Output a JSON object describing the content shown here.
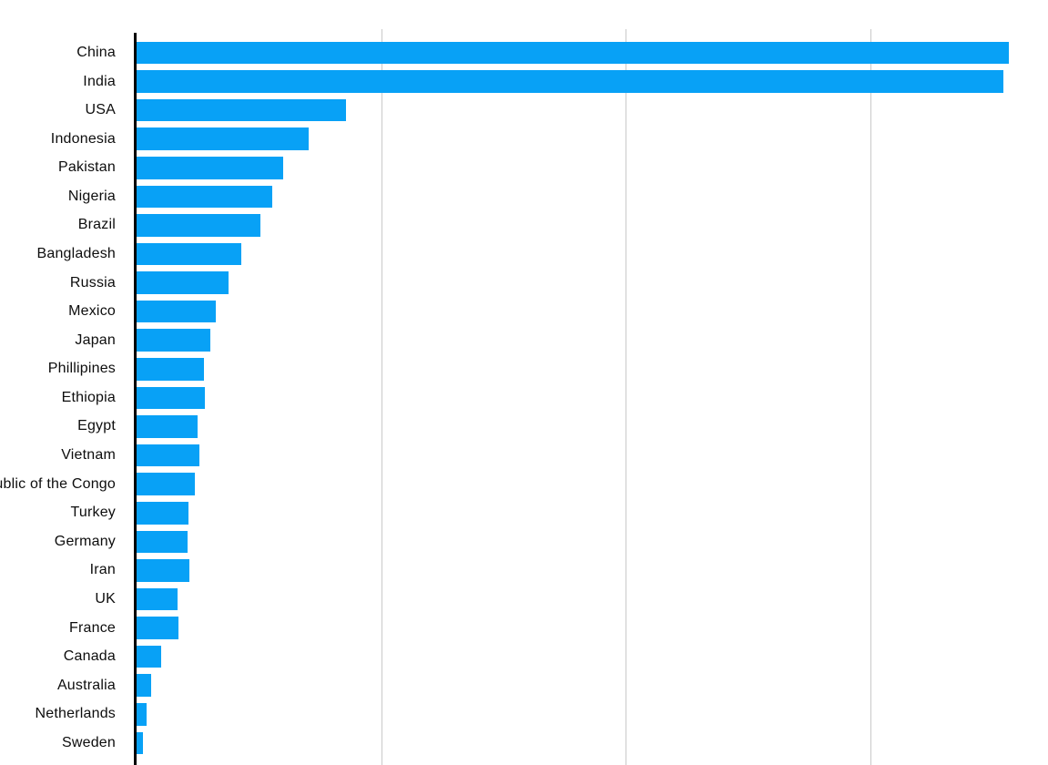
{
  "page": {
    "background_color": "#ffffff"
  },
  "chart_data": {
    "type": "bar",
    "orientation": "horizontal",
    "title": "",
    "xlabel": "",
    "ylabel": "",
    "legend": "none",
    "grid": "vertical gridlines only",
    "categories": [
      "China",
      "India",
      "USA",
      "Indonesia",
      "Pakistan",
      "Nigeria",
      "Brazil",
      "Bangladesh",
      "Russia",
      "Mexico",
      "Japan",
      "Phillipines",
      "Ethiopia",
      "Egypt",
      "Vietnam",
      "Democratic Republic of the Congo",
      "Turkey",
      "Germany",
      "Iran",
      "UK",
      "France",
      "Canada",
      "Australia",
      "Netherlands",
      "Sweden"
    ],
    "values": [
      1426,
      1417,
      342,
      281,
      240,
      221,
      202,
      171,
      150,
      130,
      121,
      110,
      111,
      100,
      102,
      95,
      85,
      84,
      87,
      67,
      68,
      40,
      24,
      17,
      10
    ],
    "value_unit": "millions (estimated from bar lengths; numeric axis tick labels are cropped out of the visible frame)",
    "xlim": [
      0,
      1490
    ],
    "gridline_values": [
      400,
      800,
      1200
    ],
    "bar_color": "#08a1f6",
    "gridline_color": "#c9c9c9",
    "axis_line_color": "#000000",
    "label_color": "#0d0d0d",
    "layout_notes": {
      "left_label_clipped": "Democratic Republic of the Congo is truncated by the left image edge, showing only 'c of the Congo'"
    }
  }
}
